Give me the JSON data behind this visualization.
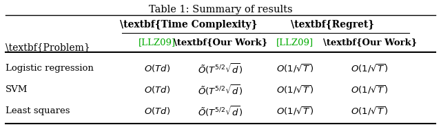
{
  "title": "Table 1: Summary of results",
  "col_groups": [
    "Time Complexity",
    "Regret"
  ],
  "sub_cols": [
    "[LLZ09]",
    "Our Work",
    "[LLZ09]",
    "Our Work"
  ],
  "row_labels": [
    "Problem",
    "Logistic regression",
    "SVM",
    "Least squares"
  ],
  "data": [
    [
      "$O(Td)$",
      "$\\tilde{O}(T^{5/2}\\sqrt{d})$",
      "$O(1/\\sqrt{T})$",
      "$O(1/\\sqrt{T})$"
    ],
    [
      "$O(Td)$",
      "$\\tilde{O}(T^{5/2}\\sqrt{d})$",
      "$O(1/\\sqrt{T})$",
      "$O(1/\\sqrt{T})$"
    ],
    [
      "$O(Td)$",
      "$\\tilde{O}(T^{5/2}\\sqrt{d})$",
      "$O(1/\\sqrt{T})$",
      "$O(1/\\sqrt{T})$"
    ]
  ],
  "llz09_color": "#00aa00",
  "our_work_bold": true,
  "background_color": "#ffffff"
}
